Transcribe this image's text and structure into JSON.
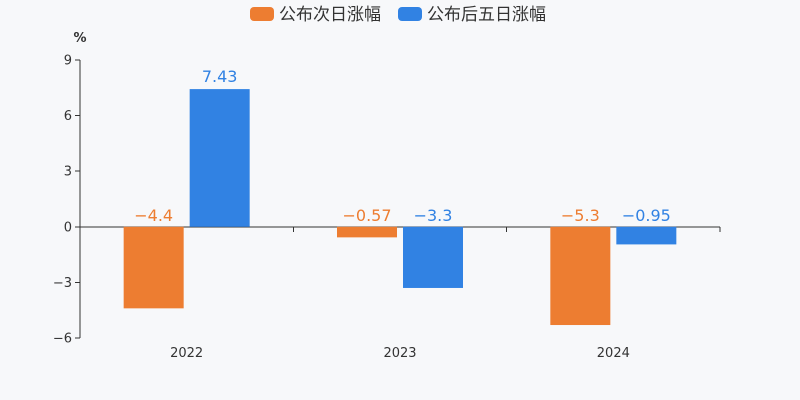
{
  "chart_data": {
    "type": "bar",
    "unit_label": "%",
    "categories": [
      "2022",
      "2023",
      "2024"
    ],
    "series": [
      {
        "name": "公布次日涨幅",
        "color": "#ed7d31",
        "values": [
          -4.4,
          -0.57,
          -5.3
        ],
        "labels": [
          "−4.4",
          "−0.57",
          "−5.3"
        ]
      },
      {
        "name": "公布后五日涨幅",
        "color": "#3182e3",
        "values": [
          7.43,
          -3.3,
          -0.95
        ],
        "labels": [
          "7.43",
          "−3.3",
          "−0.95"
        ]
      }
    ],
    "ylim": [
      -6,
      9
    ],
    "yticks": [
      9,
      6,
      3,
      0,
      -3,
      -6
    ],
    "ytick_labels": [
      "9",
      "6",
      "3",
      "0",
      "−3",
      "−6"
    ],
    "grid": false,
    "legend_position": "top-center"
  }
}
